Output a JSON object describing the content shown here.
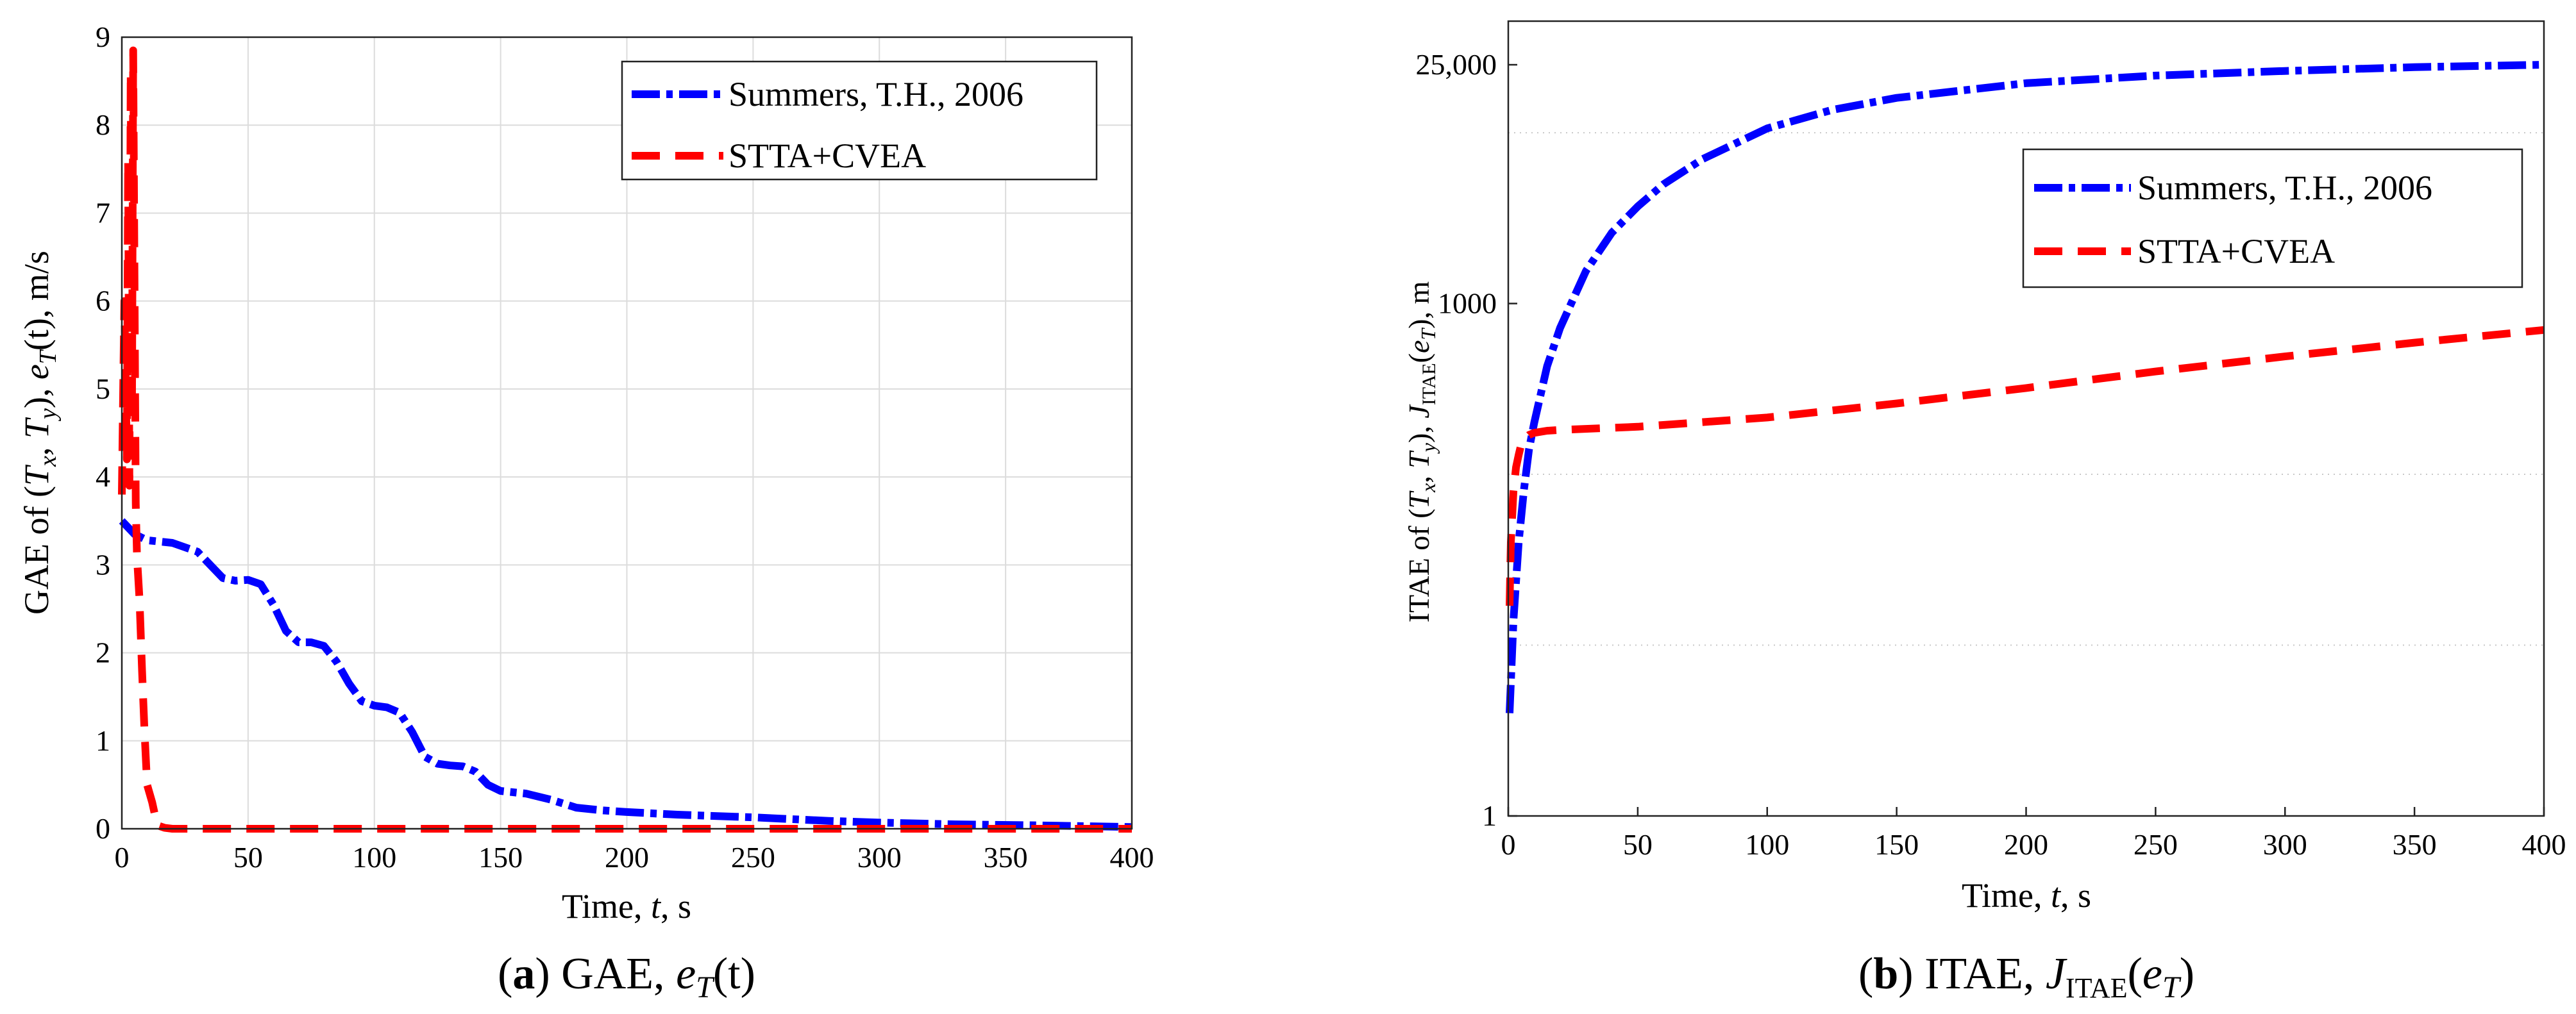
{
  "chart_data": [
    {
      "type": "line",
      "caption": {
        "letter": "a",
        "text": "GAE, ",
        "var": "e",
        "sub": "T",
        "arg": "(t)"
      },
      "xlabel": {
        "text": "Time,  ",
        "var": "t",
        "unit": ", s"
      },
      "ylabel": {
        "pre": "GAE of (",
        "tx": "T",
        "txs": "x",
        "mid": ", ",
        "ty": "T",
        "tys": "y",
        "post": "), ",
        "ev": "e",
        "evs": "T",
        "ev2": "(t), m/s"
      },
      "xlim": [
        0,
        400
      ],
      "ylim": [
        0,
        9
      ],
      "xticks": [
        "0",
        "50",
        "100",
        "150",
        "200",
        "250",
        "300",
        "350",
        "400"
      ],
      "yticks": [
        "0",
        "1",
        "2",
        "3",
        "4",
        "5",
        "6",
        "7",
        "8",
        "9"
      ],
      "grid": true,
      "legend_position": "top-right",
      "series": [
        {
          "name": "Summers, T.H., 2006",
          "color": "#0000ff",
          "style": "dash-dot",
          "x": [
            0,
            5,
            10,
            20,
            30,
            40,
            45,
            50,
            55,
            60,
            65,
            70,
            75,
            80,
            85,
            90,
            95,
            100,
            105,
            110,
            115,
            120,
            125,
            130,
            135,
            140,
            145,
            150,
            160,
            170,
            180,
            190,
            200,
            220,
            250,
            280,
            300,
            330,
            360,
            400
          ],
          "values": [
            3.5,
            3.35,
            3.28,
            3.25,
            3.15,
            2.85,
            2.82,
            2.83,
            2.78,
            2.55,
            2.25,
            2.12,
            2.12,
            2.08,
            1.9,
            1.65,
            1.45,
            1.4,
            1.38,
            1.32,
            1.1,
            0.82,
            0.74,
            0.72,
            0.71,
            0.65,
            0.5,
            0.43,
            0.4,
            0.33,
            0.24,
            0.21,
            0.19,
            0.16,
            0.13,
            0.09,
            0.07,
            0.05,
            0.04,
            0.02
          ]
        },
        {
          "name": "STTA+CVEA",
          "color": "#ff0000",
          "style": "dash",
          "x": [
            0,
            1,
            2,
            2.5,
            3,
            3.5,
            4,
            4.5,
            5,
            5.5,
            6,
            7,
            8,
            9,
            10,
            12,
            14,
            17,
            20,
            400
          ],
          "values": [
            3.8,
            6.0,
            4.2,
            7.6,
            3.9,
            8.6,
            4.7,
            8.85,
            6.3,
            3.7,
            3.1,
            2.6,
            1.8,
            1.1,
            0.5,
            0.3,
            0.04,
            0.01,
            0,
            0
          ]
        }
      ]
    },
    {
      "type": "line",
      "caption": {
        "letter": "b",
        "text": "ITAE, ",
        "var": "J",
        "sub": "ITAE",
        "arg": "(",
        "var2": "e",
        "sub2": "T",
        "arg2": ")"
      },
      "xlabel": {
        "text": "Time,  ",
        "var": "t",
        "unit": ", s"
      },
      "ylabel": {
        "pre": "ITAE of (",
        "tx": "T",
        "txs": "x",
        "mid": ", ",
        "ty": "T",
        "tys": "y",
        "post": "), ",
        "jv": "J",
        "jvs": "ITAE",
        "jarg": "(",
        "ev": "e",
        "evs": "T",
        "end": "), m"
      },
      "xlim": [
        0,
        400
      ],
      "yscale": "log",
      "ylim": [
        1,
        45000
      ],
      "xticks": [
        "0",
        "50",
        "100",
        "150",
        "200",
        "250",
        "300",
        "350",
        "400"
      ],
      "ytick_values": [
        1,
        1000,
        25000
      ],
      "ytick_labels": [
        "1",
        "1000",
        "25,000"
      ],
      "minor_grid": [
        10,
        100,
        10000
      ],
      "legend_position": "upper-right",
      "series": [
        {
          "name": "Summers, T.H., 2006",
          "color": "#0000ff",
          "style": "dash-dot",
          "x": [
            0.5,
            2,
            4,
            6,
            8,
            10,
            15,
            20,
            30,
            40,
            50,
            60,
            75,
            100,
            125,
            150,
            200,
            250,
            300,
            350,
            400
          ],
          "values": [
            4,
            14,
            40,
            80,
            140,
            200,
            430,
            720,
            1550,
            2600,
            3700,
            5000,
            7000,
            10600,
            13600,
            16000,
            19500,
            21600,
            23000,
            24200,
            25000
          ]
        },
        {
          "name": "STTA+CVEA",
          "color": "#ff0000",
          "style": "dash",
          "x": [
            0.5,
            1,
            2,
            3,
            4,
            5,
            6,
            8,
            10,
            15,
            20,
            50,
            100,
            150,
            200,
            250,
            300,
            350,
            400
          ],
          "values": [
            17,
            40,
            80,
            110,
            130,
            150,
            160,
            170,
            175,
            180,
            182,
            190,
            215,
            260,
            320,
            400,
            490,
            590,
            700
          ]
        }
      ]
    }
  ]
}
